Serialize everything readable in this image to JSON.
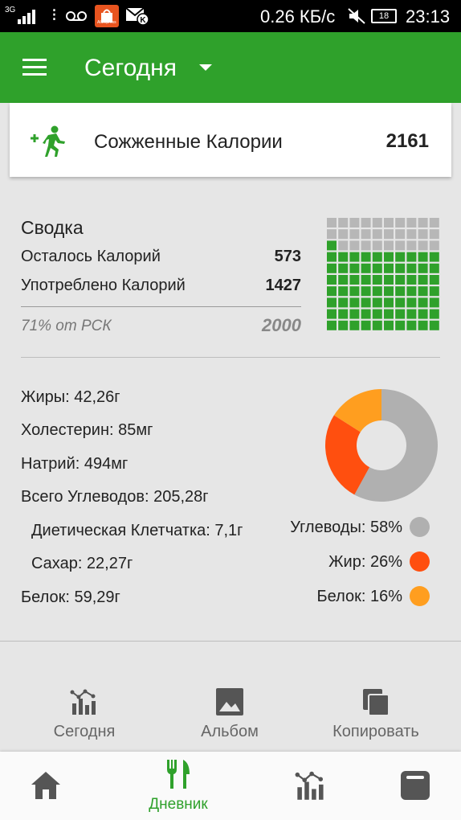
{
  "status_bar": {
    "network": "3G",
    "aliexpress_label": "AliExpress",
    "speed": "0.26 КБ/с",
    "battery": "18",
    "time": "23:13"
  },
  "header": {
    "title": "Сегодня"
  },
  "burned": {
    "label": "Сожженные Калории",
    "value": "2161"
  },
  "summary": {
    "title": "Сводка",
    "remaining_label": "Осталось Калорий",
    "remaining_value": "573",
    "consumed_label": "Употреблено Калорий",
    "consumed_value": "1427",
    "percent_label": "71% от РСК",
    "goal_value": "2000",
    "waffle_fraction": 0.71
  },
  "nutrients": {
    "fat": "Жиры: 42,26г",
    "cholesterol": "Холестерин: 85мг",
    "sodium": "Натрий: 494мг",
    "carbs": "Всего Углеводов: 205,28г",
    "fiber": "Диетическая Клетчатка: 7,1г",
    "sugar": "Сахар: 22,27г",
    "protein": "Белок: 59,29г"
  },
  "macros": {
    "carbs_label": "Углеводы: 58%",
    "fat_label": "Жир: 26%",
    "protein_label": "Белок: 16%",
    "carbs_pct": 58,
    "fat_pct": 26,
    "protein_pct": 16,
    "colors": {
      "carbs": "#b0b0b0",
      "fat": "#ff4f0f",
      "protein": "#ff9e1f"
    }
  },
  "actions": {
    "today": "Сегодня",
    "album": "Альбом",
    "copy": "Копировать"
  },
  "nav": {
    "diary": "Дневник",
    "accent": "#2fa12b"
  },
  "colors": {
    "brand_green": "#2fa12b",
    "waffle_gray": "#b7b7b7"
  }
}
